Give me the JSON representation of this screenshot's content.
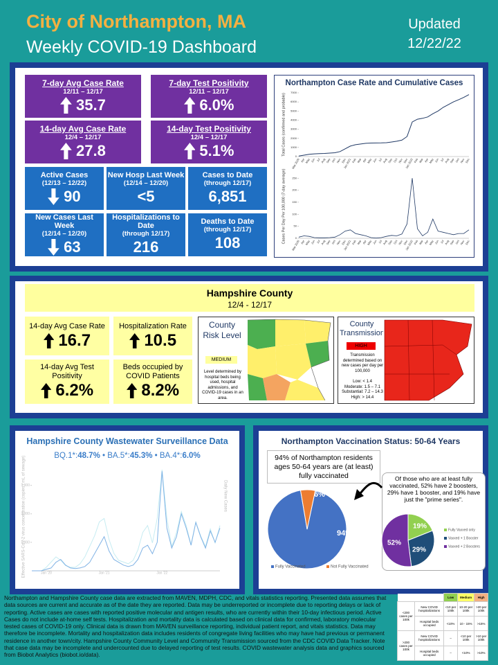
{
  "header": {
    "title": "City of Northampton, MA",
    "subtitle": "Weekly COVID-19 Dashboard",
    "updated": "Updated",
    "date": "12/22/22"
  },
  "city_tiles": [
    {
      "title": "7-day Avg Case Rate",
      "period": "12/11 – 12/17",
      "value": "35.7",
      "trend": "up"
    },
    {
      "title": "7-day Test Positivity",
      "period": "12/11 – 12/17",
      "value": "6.0%",
      "trend": "up"
    },
    {
      "title": "14-day Avg Case Rate",
      "period": "12/4 – 12/17",
      "value": "27.8",
      "trend": "up"
    },
    {
      "title": "14-day Test Positivity",
      "period": "12/4 – 12/17",
      "value": "5.1%",
      "trend": "up"
    },
    {
      "title": "Active Cases",
      "period": "(12/13 – 12/22)",
      "value": "90",
      "trend": "down"
    },
    {
      "title": "New Hosp Last Week",
      "period": "(12/14 – 12/20)",
      "value": "<5"
    },
    {
      "title": "Cases to Date",
      "period": "(through 12/17)",
      "value": "6,851"
    },
    {
      "title": "New Cases Last Week",
      "period": "(12/14 – 12/20)",
      "value": "63",
      "trend": "down"
    },
    {
      "title": "Hospitalizations to Date",
      "period": "(through 12/17)",
      "value": "216"
    },
    {
      "title": "Deaths to Date",
      "period": "(through 12/17)",
      "value": "108"
    }
  ],
  "county": {
    "title": "Hampshire County",
    "period": "12/4 - 12/17",
    "tiles": [
      {
        "title": "14-day Avg Case Rate",
        "value": "16.7",
        "trend": "up"
      },
      {
        "title": "Hospitalization Rate",
        "value": "10.5",
        "trend": "up"
      },
      {
        "title": "14-day Avg Test Positivity",
        "value": "6.2%",
        "trend": "up"
      },
      {
        "title": "Beds occupied by COVID Patients",
        "value": "8.2%",
        "trend": "up"
      }
    ],
    "risk": {
      "title": "County Risk Level",
      "level": "MEDIUM",
      "note": "Level determined by hospital beds being used, hospital admissions, and COVID-19 cases in an area."
    },
    "transmission": {
      "title": "County Transmission",
      "level": "HIGH",
      "note": "Transmission determined based on new cases per day per 100,000",
      "scale": [
        "Low: < 1.4",
        "Moderate: 1.5 – 7.1",
        "Substantial: 7.2 – 14.3",
        "High: > 14.4"
      ]
    }
  },
  "wastewater": {
    "title": "Hampshire County Wastewater Surveillance Data",
    "variants": [
      {
        "name": "BQ.1*:",
        "share": "48.7%"
      },
      {
        "name": "BA.5*:",
        "share": "45.3%"
      },
      {
        "name": "BA.4*:",
        "share": "6.0%"
      }
    ]
  },
  "vaccination": {
    "title": "Northampton Vaccination Status: 50-64 Years",
    "summary": "94% of Northampton residents ages 50-64 years are (at least) fully vaccinated",
    "callout": "Of those who are at least fully vaccinated, 52% have 2 boosters, 29% have 1 booster, and 19% have just the \"prime series\"."
  },
  "footer": "Northampton and Hampshire County case data are extracted from MAVEN, MDPH, CDC, and vitals statistics reporting. Presented data assumes that data sources are current and accurate as of the date they are reported. Data may be underreported or incomplete due to reporting delays or lack of reporting. Active cases are cases with reported positive molecular and antigen results, who are currently within their 10-day infectious period. Active Cases do not include at-home self tests. Hospitalization and mortality data is calculated based on clinical data for confirmed, laboratory molecular tested cases of COVID-19 only. Clinical data is drawn from MAVEN surveillance reporting, individual patient report, and vitals statistics. Data may therefore be incomplete. Mortality and hospitalization data includes residents of congregate living facilities who may have had previous or permanent residence in another town/city. Hampshire County Community Level and Community Transmission sourced from the CDC COVID Data Tracker. Note that case data may be incomplete and undercounted due to delayed reporting of test results. COVID wastewater analysis data and graphics sourced from Biobot Analytics (biobot.io/data).",
  "levels_table": {
    "header": [
      "Low",
      "Medium",
      "High"
    ],
    "groups": [
      {
        "label": "<200 cases per 100k",
        "rows": [
          {
            "label": "New COVID hospitalizations",
            "cells": [
              "<10 per 100k",
              "10-20 per 100k",
              ">20 per 100k"
            ]
          },
          {
            "label": "Hospital beds occupied",
            "cells": [
              "<10%",
              "10 - 15%",
              ">15%"
            ]
          }
        ]
      },
      {
        "label": ">200 cases per 100k",
        "rows": [
          {
            "label": "New COVID hospitalizations",
            "cells": [
              "–",
              "<10 per 100k",
              ">10 per 100k"
            ]
          },
          {
            "label": "Hospital beds occupied",
            "cells": [
              "–",
              "<10%",
              ">10%"
            ]
          }
        ]
      }
    ]
  },
  "chart_data": [
    {
      "type": "line",
      "title": "Northampton Case Rate and Cumulative Cases",
      "y_label": "Total Cases (confirmed and probable)",
      "color": "#1f3864",
      "categories": [
        "Mar 2020",
        "Apr",
        "May",
        "Jun",
        "Jul",
        "Aug",
        "Sep",
        "Oct",
        "Nov",
        "Dec",
        "Jan 2021",
        "Feb",
        "Mar",
        "Apr",
        "May",
        "Jun",
        "Jul",
        "Aug",
        "Sep",
        "Oct",
        "Nov",
        "Dec",
        "Jan 2022",
        "Feb",
        "Mar",
        "Apr",
        "May",
        "Jun",
        "Jul",
        "Aug",
        "Sep",
        "Oct",
        "Nov",
        "Dec"
      ],
      "values": [
        50,
        150,
        250,
        300,
        320,
        340,
        380,
        420,
        550,
        850,
        1150,
        1300,
        1380,
        1450,
        1480,
        1490,
        1500,
        1520,
        1600,
        1680,
        1800,
        2200,
        3800,
        4100,
        4200,
        4350,
        4700,
        5000,
        5400,
        5700,
        6000,
        6250,
        6500,
        6800
      ],
      "ylim": [
        0,
        7000
      ],
      "yticks": [
        0,
        1000,
        2000,
        3000,
        4000,
        5000,
        6000,
        7000
      ]
    },
    {
      "type": "line",
      "y_label": "Cases Per Day Per 100,000 (7-day average)",
      "color": "#1f3864",
      "categories": [
        "Mar 2020",
        "Apr",
        "May",
        "Jun",
        "Jul",
        "Aug",
        "Sep",
        "Oct",
        "Nov",
        "Dec",
        "Jan 2021",
        "Feb",
        "Mar",
        "Apr",
        "May",
        "Jun",
        "Jul",
        "Aug",
        "Sep",
        "Oct",
        "Nov",
        "Dec",
        "Jan 2022",
        "Feb",
        "Mar",
        "Apr",
        "May",
        "Jun",
        "Jul",
        "Aug",
        "Sep",
        "Oct",
        "Nov",
        "Dec"
      ],
      "values": [
        5,
        10,
        8,
        3,
        2,
        2,
        3,
        5,
        15,
        30,
        35,
        20,
        15,
        10,
        3,
        1,
        3,
        8,
        12,
        10,
        18,
        60,
        250,
        40,
        10,
        25,
        80,
        30,
        25,
        20,
        15,
        20,
        20,
        35
      ],
      "ylim": [
        0,
        265
      ],
      "yticks": [
        0,
        50,
        100,
        150,
        200,
        250
      ]
    },
    {
      "type": "line",
      "y_label": "Effective SARS-CoV-2 virus concentration (copies / mL of sewage)",
      "y2_label": "Daily New Cases",
      "categories": [
        null,
        null,
        null,
        "Jan '20",
        null,
        null,
        null,
        null,
        null,
        null,
        null,
        null,
        null,
        null,
        null,
        "Jan '21",
        null,
        null,
        null,
        null,
        null,
        null,
        null,
        null,
        null,
        null,
        null,
        "Jan '22",
        null,
        null,
        null,
        null,
        null,
        null,
        null,
        null,
        null,
        null,
        null,
        null
      ],
      "series": [
        {
          "color": "#7fb2e5",
          "values": [
            0,
            0,
            0,
            50,
            100,
            300,
            400,
            200,
            100,
            80,
            100,
            150,
            300,
            600,
            900,
            1200,
            700,
            400,
            300,
            200,
            150,
            200,
            400,
            800,
            900,
            600,
            1000,
            3500,
            1500,
            800,
            1200,
            2000,
            1500,
            900,
            1700,
            1200,
            800,
            1400,
            1000,
            1500
          ]
        },
        {
          "color": "#c6ecf2",
          "axis": "y2",
          "values": [
            0,
            0,
            0,
            2,
            5,
            8,
            6,
            3,
            2,
            2,
            4,
            8,
            14,
            20,
            28,
            30,
            18,
            10,
            6,
            5,
            4,
            6,
            12,
            22,
            26,
            16,
            30,
            58,
            30,
            14,
            22,
            34,
            26,
            15,
            28,
            20,
            14,
            24,
            16,
            26
          ]
        }
      ],
      "ylim": [
        0,
        3800
      ],
      "yticks": [
        {
          "value": 1000,
          "label": "1,000"
        },
        {
          "value": 2000,
          "label": "2,000"
        },
        {
          "value": 3000,
          "label": "3,000"
        }
      ],
      "y2lim": [
        0,
        62
      ]
    },
    {
      "type": "pie",
      "categories": [
        "Fully Vaccinated",
        "Not Fully Vaccinated"
      ],
      "values": [
        94,
        6
      ],
      "value_labels": [
        "94%",
        "6%"
      ],
      "colors": [
        "#4472c4",
        "#ed7d31"
      ]
    },
    {
      "type": "pie",
      "categories": [
        "Fully Vaxxed only",
        "Vaxxed + 1 Booster",
        "Vaxxed + 2 Boosters"
      ],
      "values": [
        19,
        29,
        52
      ],
      "value_labels": [
        "19%",
        "29%",
        "52%"
      ],
      "colors": [
        "#92d050",
        "#1f4e79",
        "#7030a0"
      ]
    }
  ]
}
